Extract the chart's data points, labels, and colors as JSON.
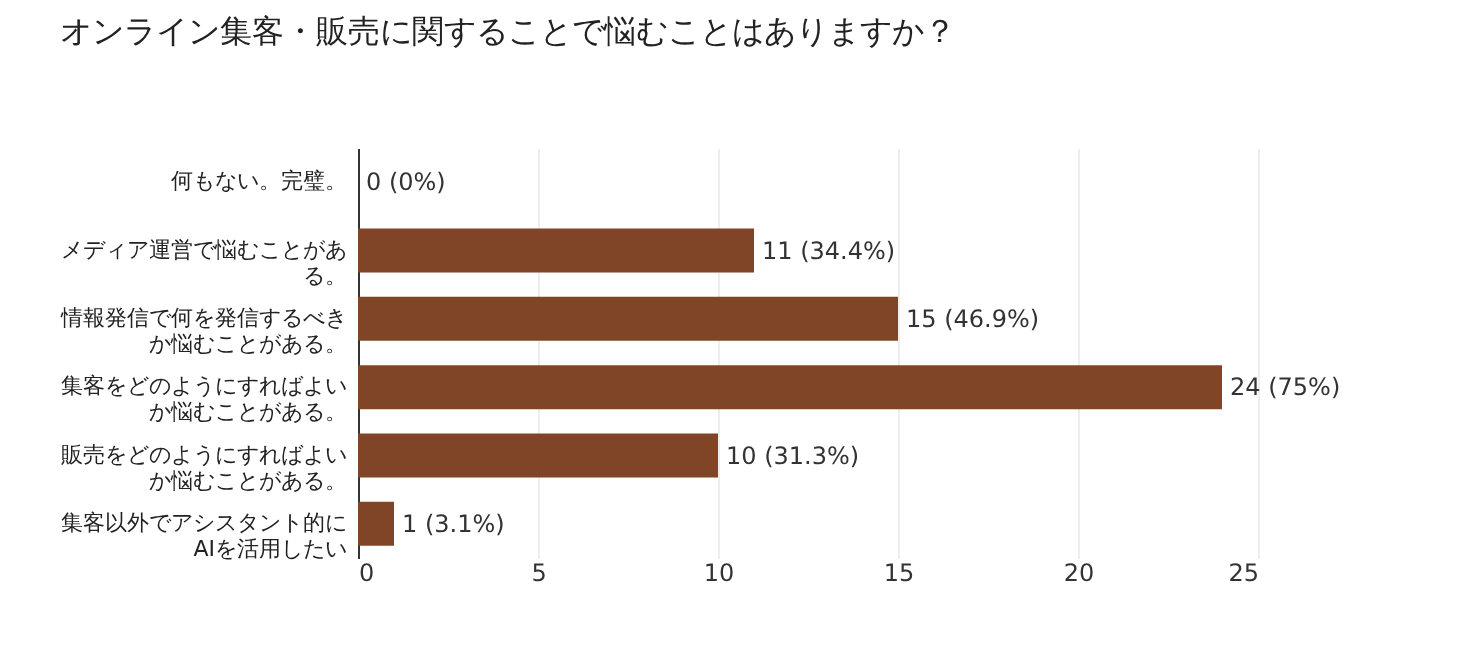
{
  "chart_data": {
    "type": "bar",
    "orientation": "horizontal",
    "title": "オンライン集客・販売に関することで悩むことはありますか？",
    "categories": [
      "何もない。完璧。",
      "メディア運営で悩むことがある。",
      "情報発信で何を発信するべきか悩むことがある。",
      "集客をどのようにすればよいか悩むことがある。",
      "販売をどのようにすればよいか悩むことがある。",
      "集客以外でアシスタント的にAIを活用したい"
    ],
    "values": [
      0,
      11,
      15,
      24,
      10,
      1
    ],
    "value_labels": [
      "0 (0%)",
      "11 (34.4%)",
      "15 (46.9%)",
      "24 (75%)",
      "10 (31.3%)",
      "1 (3.1%)"
    ],
    "color": "#7f4526",
    "xlim": [
      0,
      25
    ],
    "xticks": [
      0,
      5,
      10,
      15,
      20,
      25
    ],
    "grid": "x"
  }
}
